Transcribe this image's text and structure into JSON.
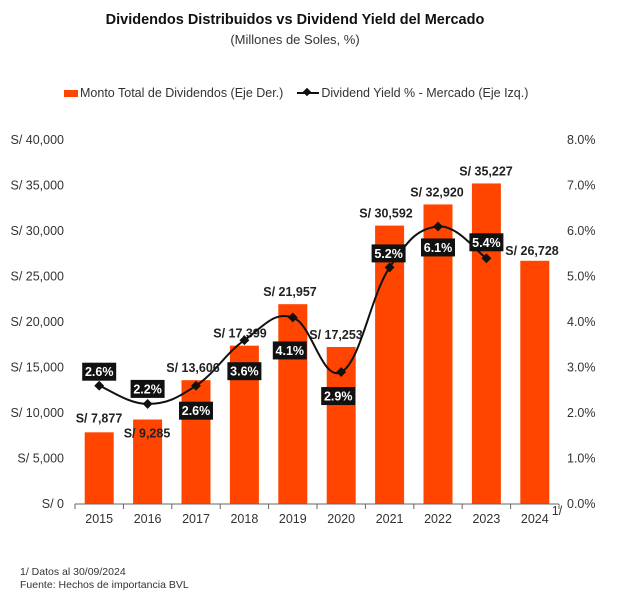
{
  "chart_data": {
    "type": "bar",
    "title": "Dividendos Distribuidos vs Dividend Yield del Mercado",
    "subtitle": "(Millones de Soles, %)",
    "categories": [
      "2015",
      "2016",
      "2017",
      "2018",
      "2019",
      "2020",
      "2021",
      "2022",
      "2023",
      "2024"
    ],
    "category_superscripts": {
      "2024": "1/"
    },
    "series": [
      {
        "name": "Monto Total de Dividendos (Eje Der.)",
        "type": "bar",
        "axis": "left",
        "color": "#FF4500",
        "values": [
          7877,
          9285,
          13606,
          17399,
          21957,
          17253,
          30592,
          32920,
          35227,
          26728
        ],
        "labels": [
          "S/ 7,877",
          "S/ 9,285",
          "S/ 13,606",
          "S/ 17,399",
          "S/ 21,957",
          "S/ 17,253",
          "S/ 30,592",
          "S/ 32,920",
          "S/ 35,227",
          "S/ 26,728"
        ]
      },
      {
        "name": "Dividend Yield % - Mercado (Eje Izq.)",
        "type": "line",
        "axis": "right",
        "color": "#111111",
        "values": [
          2.6,
          2.2,
          2.6,
          3.6,
          4.1,
          2.9,
          5.2,
          6.1,
          5.4,
          null
        ],
        "labels": [
          "2.6%",
          "2.2%",
          "2.6%",
          "3.6%",
          "4.1%",
          "2.9%",
          "5.2%",
          "6.1%",
          "5.4%",
          null
        ]
      }
    ],
    "y_left": {
      "range": [
        0,
        40000
      ],
      "ticks": [
        "S/ 0",
        "S/ 5,000",
        "S/ 10,000",
        "S/ 15,000",
        "S/ 20,000",
        "S/ 25,000",
        "S/ 30,000",
        "S/ 35,000",
        "S/ 40,000"
      ]
    },
    "y_right": {
      "range": [
        0,
        8
      ],
      "ticks": [
        "0.0%",
        "1.0%",
        "2.0%",
        "3.0%",
        "4.0%",
        "5.0%",
        "6.0%",
        "7.0%",
        "8.0%"
      ]
    },
    "grid": false,
    "legend_position": "top-center"
  },
  "footnotes": {
    "note": "1/ Datos al 30/09/2024",
    "source": "Fuente: Hechos de importancia BVL"
  }
}
